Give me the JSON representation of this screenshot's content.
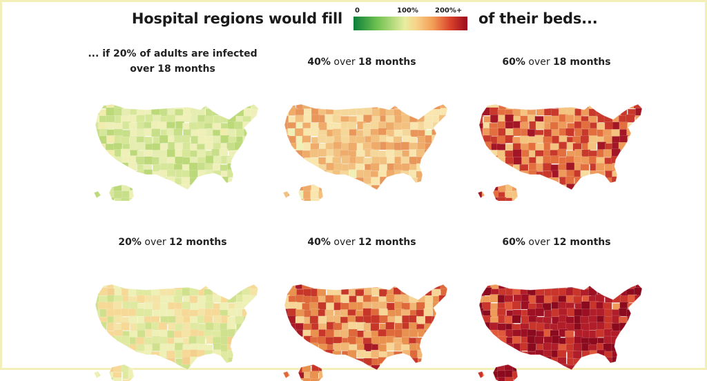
{
  "header": {
    "title_left": "Hospital regions would fill",
    "title_right": "of their beds..."
  },
  "legend": {
    "label_min": "0",
    "label_mid": "100%",
    "label_max": "200%+",
    "colors": [
      "#0a7f3a",
      "#6cbf4e",
      "#e8eea0",
      "#f7d38a",
      "#f29c55",
      "#d9432b",
      "#9b0a1e"
    ]
  },
  "panels": [
    {
      "title_lines": [
        [
          {
            "t": "... if ",
            "b": true
          },
          {
            "t": "20%",
            "b": true
          },
          {
            "t": " of adults are infected",
            "b": true
          }
        ],
        [
          {
            "t": "over ",
            "b": true
          },
          {
            "t": "18 months",
            "b": true
          }
        ]
      ],
      "palette": [
        "#e5edb0",
        "#d7e79a",
        "#c7df88",
        "#eef0b8",
        "#bcd979",
        "#f1ebac"
      ],
      "fill_level": 0.45
    },
    {
      "title_lines": [
        [
          {
            "t": "40%",
            "b": true
          },
          {
            "t": " over ",
            "b": false
          },
          {
            "t": "18 months",
            "b": true
          }
        ]
      ],
      "palette": [
        "#f6d79a",
        "#f3c17f",
        "#eeab6a",
        "#f8e6ae",
        "#e9965b",
        "#f0efb6"
      ],
      "fill_level": 0.9
    },
    {
      "title_lines": [
        [
          {
            "t": "60%",
            "b": true
          },
          {
            "t": " over ",
            "b": false
          },
          {
            "t": "18 months",
            "b": true
          }
        ]
      ],
      "palette": [
        "#f4c37f",
        "#ed9a5b",
        "#e36f3f",
        "#c8382b",
        "#a31625",
        "#f6dc9f"
      ],
      "fill_level": 1.35
    },
    {
      "title_lines": [
        [
          {
            "t": "20%",
            "b": true
          },
          {
            "t": " over ",
            "b": false
          },
          {
            "t": "12 months",
            "b": true
          }
        ]
      ],
      "palette": [
        "#f4e4a6",
        "#eef0b6",
        "#dfe9a0",
        "#f6d996",
        "#cfe18d",
        "#f3cf8e"
      ],
      "fill_level": 0.65
    },
    {
      "title_lines": [
        [
          {
            "t": "40%",
            "b": true
          },
          {
            "t": " over ",
            "b": false
          },
          {
            "t": "12 months",
            "b": true
          }
        ]
      ],
      "palette": [
        "#f1b674",
        "#e9914f",
        "#de6a3b",
        "#c6372a",
        "#f6d596",
        "#a81a26"
      ],
      "fill_level": 1.3
    },
    {
      "title_lines": [
        [
          {
            "t": "60%",
            "b": true
          },
          {
            "t": " over ",
            "b": false
          },
          {
            "t": "12 months",
            "b": true
          }
        ]
      ],
      "palette": [
        "#9d0f22",
        "#b21d2a",
        "#c9342b",
        "#8b0a1d",
        "#e0593a",
        "#ee9a58"
      ],
      "fill_level": 1.9
    }
  ]
}
